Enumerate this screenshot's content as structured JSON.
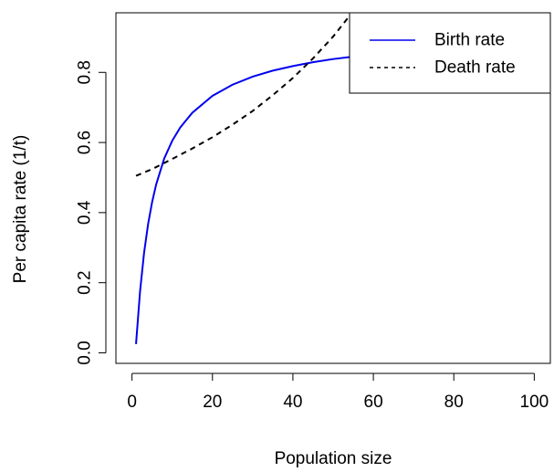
{
  "chart_data": {
    "type": "line",
    "title": "",
    "xlabel": "Population size",
    "ylabel": "Per capita rate (1/t)",
    "xlim": [
      -4,
      104
    ],
    "ylim": [
      -0.03,
      0.97
    ],
    "x_ticks": [
      0,
      20,
      40,
      60,
      80,
      100
    ],
    "y_ticks": [
      0.0,
      0.2,
      0.4,
      0.6,
      0.8
    ],
    "x_tick_labels": [
      "0",
      "20",
      "40",
      "60",
      "80",
      "100"
    ],
    "y_tick_labels": [
      "0.0",
      "0.2",
      "0.4",
      "0.6",
      "0.8"
    ],
    "grid": false,
    "legend_position": "top-right",
    "series": [
      {
        "name": "Birth rate",
        "color": "#0000ee",
        "line_style": "solid",
        "x": [
          1,
          2,
          3,
          4,
          5,
          6,
          8,
          10,
          12,
          15,
          20,
          25,
          30,
          35,
          40,
          45,
          50,
          55,
          60,
          65,
          70,
          75,
          80,
          85,
          90,
          95,
          100
        ],
        "y": [
          0.025,
          0.175,
          0.285,
          0.367,
          0.43,
          0.48,
          0.554,
          0.605,
          0.643,
          0.685,
          0.733,
          0.765,
          0.788,
          0.805,
          0.818,
          0.829,
          0.838,
          0.845,
          0.852,
          0.857,
          0.862,
          0.866,
          0.87,
          0.873,
          0.876,
          0.879,
          0.881
        ]
      },
      {
        "name": "Death rate",
        "color": "#000000",
        "line_style": "dashed",
        "x": [
          1,
          5,
          10,
          15,
          20,
          25,
          30,
          35,
          40,
          45,
          50,
          54
        ],
        "y": [
          0.505,
          0.524,
          0.553,
          0.583,
          0.615,
          0.651,
          0.69,
          0.735,
          0.784,
          0.84,
          0.902,
          0.96
        ]
      }
    ]
  }
}
